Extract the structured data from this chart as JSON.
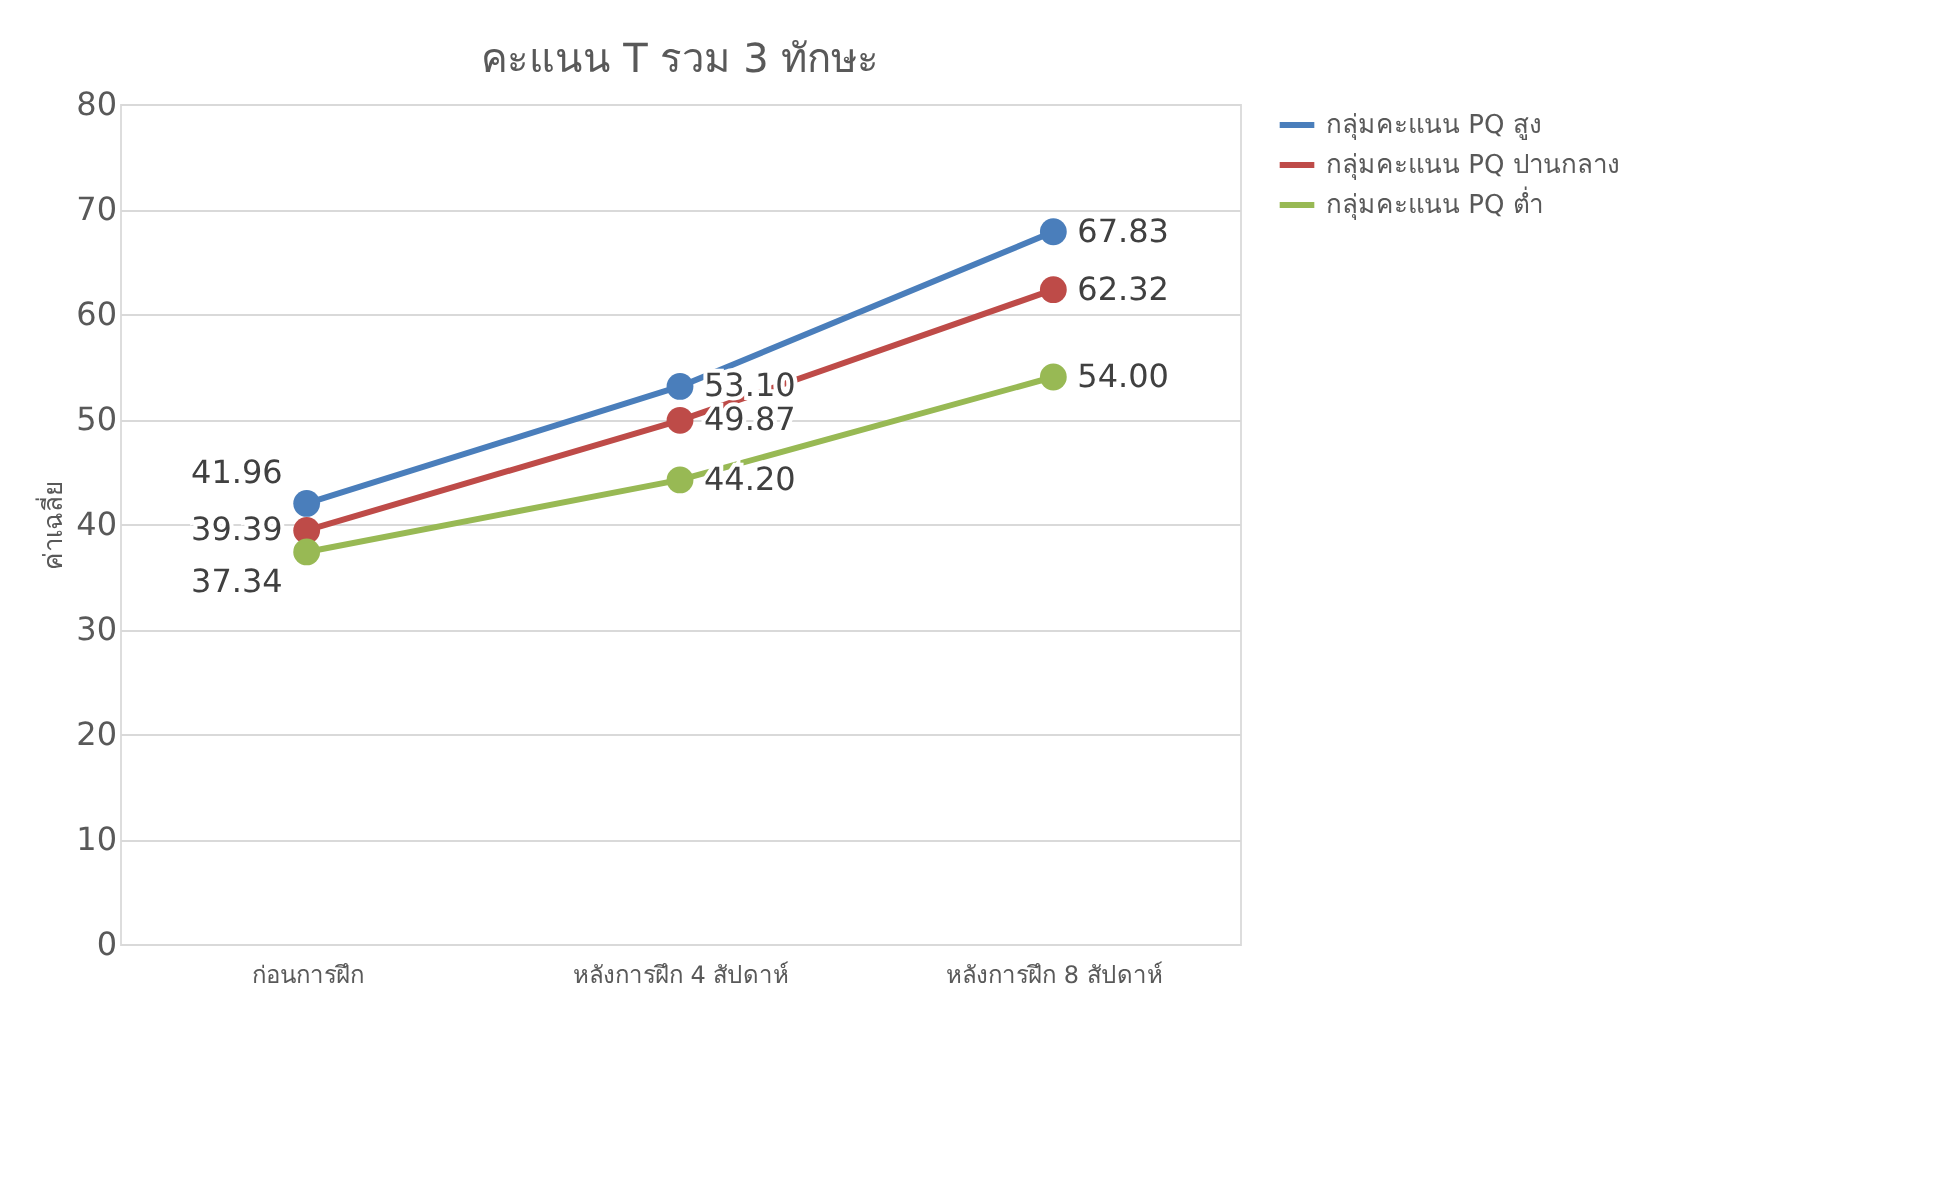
{
  "chart_data": {
    "type": "line",
    "title": "คะแนน T รวม 3 ทักษะ",
    "ylabel": "ค่าเฉลี่ย",
    "categories": [
      "ก่อนการฝึก",
      "หลังการฝึก 4 สัปดาห์",
      "หลังการฝึก 8 สัปดาห์"
    ],
    "series": [
      {
        "name": "กลุ่มคะแนน PQ สูง",
        "color": "#4a7ebb",
        "values": [
          41.96,
          53.1,
          67.83
        ],
        "value_labels": [
          "41.96",
          "53.10",
          "67.83"
        ]
      },
      {
        "name": "กลุ่มคะแนน PQ ปานกลาง",
        "color": "#be4b48",
        "values": [
          39.39,
          49.87,
          62.32
        ],
        "value_labels": [
          "39.39",
          "49.87",
          "62.32"
        ]
      },
      {
        "name": "กลุ่มคะแนน PQ ต่ำ",
        "color": "#98b954",
        "values": [
          37.34,
          44.2,
          54.0
        ],
        "value_labels": [
          "37.34",
          "44.20",
          "54.00"
        ]
      }
    ],
    "ylim": [
      0,
      80
    ],
    "yticks": [
      0,
      10,
      20,
      30,
      40,
      50,
      60,
      70,
      80
    ],
    "grid": "y",
    "legend": "right",
    "marker": "circle",
    "line_style": "solid"
  }
}
